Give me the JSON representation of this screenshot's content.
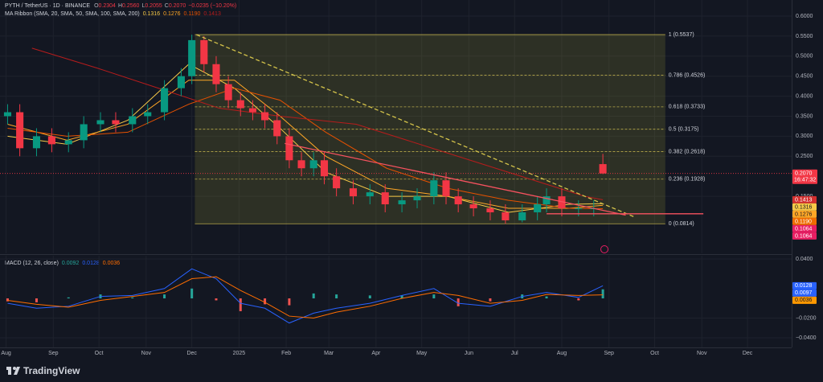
{
  "header": {
    "symbol": "PYTH / TetherUS · 1D · BINANCE",
    "ohlc": [
      {
        "key": "O",
        "value": "0.2304"
      },
      {
        "key": "H",
        "value": "0.2560"
      },
      {
        "key": "L",
        "value": "0.2055"
      },
      {
        "key": "C",
        "value": "0.2070"
      }
    ],
    "change": "−0.0235 (−10.20%)",
    "ma_ribbon": "MA Ribbon (SMA, 20, SMA, 50, SMA, 100, SMA, 200)"
  },
  "chart_data": [
    {
      "type": "candlestick",
      "x": [
        1,
        9,
        20,
        30,
        41,
        51,
        62,
        72,
        83,
        93,
        104,
        115,
        122,
        130,
        138,
        146,
        154,
        162,
        170,
        178,
        186,
        194,
        202,
        209,
        217,
        228,
        239,
        249,
        260,
        270,
        281,
        289,
        297,
        307,
        318,
        328,
        339,
        349,
        355,
        365,
        376,
        386,
        392
      ],
      "open": [
        0.35,
        0.36,
        0.27,
        0.3,
        0.28,
        0.29,
        0.33,
        0.34,
        0.33,
        0.35,
        0.36,
        0.42,
        0.45,
        0.54,
        0.48,
        0.43,
        0.39,
        0.37,
        0.36,
        0.34,
        0.3,
        0.24,
        0.22,
        0.24,
        0.2,
        0.17,
        0.15,
        0.16,
        0.13,
        0.14,
        0.15,
        0.19,
        0.15,
        0.13,
        0.12,
        0.11,
        0.09,
        0.11,
        0.13,
        0.15,
        0.12,
        0.12,
        0.2304
      ],
      "high": [
        0.38,
        0.38,
        0.32,
        0.32,
        0.31,
        0.35,
        0.36,
        0.36,
        0.37,
        0.38,
        0.44,
        0.47,
        0.5537,
        0.55,
        0.5,
        0.45,
        0.41,
        0.39,
        0.38,
        0.36,
        0.32,
        0.26,
        0.26,
        0.26,
        0.22,
        0.19,
        0.18,
        0.18,
        0.16,
        0.17,
        0.21,
        0.21,
        0.17,
        0.15,
        0.14,
        0.13,
        0.13,
        0.15,
        0.17,
        0.17,
        0.14,
        0.14,
        0.256
      ],
      "low": [
        0.33,
        0.25,
        0.25,
        0.26,
        0.26,
        0.27,
        0.31,
        0.31,
        0.31,
        0.33,
        0.34,
        0.4,
        0.43,
        0.46,
        0.41,
        0.37,
        0.35,
        0.34,
        0.32,
        0.28,
        0.22,
        0.2,
        0.2,
        0.18,
        0.15,
        0.13,
        0.13,
        0.11,
        0.11,
        0.12,
        0.13,
        0.13,
        0.11,
        0.1,
        0.09,
        0.0814,
        0.085,
        0.09,
        0.11,
        0.1,
        0.1,
        0.1,
        0.2055
      ],
      "close": [
        0.36,
        0.27,
        0.3,
        0.28,
        0.29,
        0.33,
        0.34,
        0.33,
        0.35,
        0.36,
        0.42,
        0.45,
        0.54,
        0.48,
        0.43,
        0.39,
        0.37,
        0.36,
        0.34,
        0.3,
        0.24,
        0.22,
        0.24,
        0.2,
        0.17,
        0.15,
        0.16,
        0.13,
        0.14,
        0.15,
        0.19,
        0.15,
        0.13,
        0.12,
        0.11,
        0.09,
        0.11,
        0.13,
        0.15,
        0.12,
        0.12,
        0.12,
        0.207
      ],
      "up_color": "#089981",
      "down_color": "#f23645",
      "xlim": [
        -4,
        516
      ],
      "ylim": [
        0.0076,
        0.6402
      ],
      "xticks": [
        {
          "value": 0,
          "label": "Aug"
        },
        {
          "value": 31,
          "label": "Sep"
        },
        {
          "value": 61,
          "label": "Oct"
        },
        {
          "value": 92,
          "label": "Nov"
        },
        {
          "value": 122,
          "label": "Dec"
        },
        {
          "value": 153,
          "label": "2025"
        },
        {
          "value": 184,
          "label": "Feb"
        },
        {
          "value": 212,
          "label": "Mar"
        },
        {
          "value": 243,
          "label": "Apr"
        },
        {
          "value": 273,
          "label": "May"
        },
        {
          "value": 304,
          "label": "Jun"
        },
        {
          "value": 334,
          "label": "Jul"
        },
        {
          "value": 365,
          "label": "Aug"
        },
        {
          "value": 396,
          "label": "Sep"
        },
        {
          "value": 426,
          "label": "Oct"
        },
        {
          "value": 457,
          "label": "Nov"
        },
        {
          "value": 487,
          "label": "Dec"
        }
      ],
      "yticks": [
        {
          "value": 0.6,
          "label": "0.6000"
        },
        {
          "value": 0.55,
          "label": "0.5500"
        },
        {
          "value": 0.5,
          "label": "0.5000"
        },
        {
          "value": 0.45,
          "label": "0.4500"
        },
        {
          "value": 0.4,
          "label": "0.4000"
        },
        {
          "value": 0.35,
          "label": "0.3500"
        },
        {
          "value": 0.3,
          "label": "0.3000"
        },
        {
          "value": 0.25,
          "label": "0.2500"
        },
        {
          "value": 0.15,
          "label": "0.1500"
        }
      ],
      "grid": true,
      "moving_averages": [
        {
          "color": "#f7c948",
          "legend_label": "0.1316",
          "x": [
            1,
            40,
            80,
            120,
            150,
            180,
            210,
            250,
            290,
            330,
            370,
            392
          ],
          "values": [
            0.3,
            0.28,
            0.34,
            0.48,
            0.42,
            0.32,
            0.21,
            0.15,
            0.15,
            0.11,
            0.13,
            0.1316
          ]
        },
        {
          "color": "#ffa726",
          "legend_label": "0.1276",
          "x": [
            1,
            40,
            80,
            120,
            150,
            180,
            210,
            250,
            290,
            330,
            370,
            392
          ],
          "values": [
            0.33,
            0.29,
            0.33,
            0.44,
            0.44,
            0.35,
            0.25,
            0.17,
            0.15,
            0.12,
            0.12,
            0.1276
          ]
        },
        {
          "color": "#e65100",
          "legend_label": "0.1190",
          "x": [
            1,
            40,
            80,
            120,
            150,
            180,
            210,
            250,
            290,
            330,
            370,
            392
          ],
          "values": [
            0.32,
            0.3,
            0.31,
            0.38,
            0.42,
            0.39,
            0.31,
            0.22,
            0.17,
            0.14,
            0.12,
            0.119
          ]
        },
        {
          "color": "#b71c1c",
          "legend_label": "0.1413",
          "x": [
            17,
            60,
            100,
            140,
            180,
            230,
            280,
            330,
            380,
            392
          ],
          "values": [
            0.52,
            0.47,
            0.42,
            0.37,
            0.35,
            0.33,
            0.27,
            0.21,
            0.15,
            0.1413
          ]
        }
      ],
      "fib_range": [
        124,
        433
      ],
      "fib_color": "#b8a94a",
      "fib_levels": [
        {
          "value": 0.5537,
          "label": "1 (0.5537)"
        },
        {
          "value": 0.4526,
          "label": "0.786 (0.4526)"
        },
        {
          "value": 0.3733,
          "label": "0.618 (0.3733)"
        },
        {
          "value": 0.3175,
          "label": "0.5 (0.3175)"
        },
        {
          "value": 0.2618,
          "label": "0.382 (0.2618)"
        },
        {
          "value": 0.1928,
          "label": "0.236 (0.1928)"
        },
        {
          "value": 0.0814,
          "label": "0 (0.0814)"
        }
      ],
      "trendlines": [
        {
          "color": "#d4c34a",
          "dashed": true,
          "x": [
            125,
            413
          ],
          "values": [
            0.5537,
            0.098
          ]
        },
        {
          "color": "#f7525f",
          "dashed": false,
          "x": [
            183,
            407
          ],
          "values": [
            0.282,
            0.103
          ]
        },
        {
          "color": "#f7525f",
          "dashed": false,
          "x": [
            355,
            458
          ],
          "values": [
            0.1064,
            0.1064
          ]
        }
      ],
      "last_price": {
        "value": 0.207,
        "label": "0.2070",
        "countdown": "16:47:32",
        "color": "#f23645"
      },
      "scale_labels": [
        {
          "value": 0.1413,
          "label": "0.1413",
          "color": "#d32f2f"
        },
        {
          "value": 0.1316,
          "label": "0.1316",
          "color": "#f7c948"
        },
        {
          "value": 0.1276,
          "label": "0.1276",
          "color": "#ffa726"
        },
        {
          "value": 0.119,
          "label": "0.1190",
          "color": "#ef6c00"
        },
        {
          "value": 0.1064,
          "label": "0.1064",
          "color": "#e91e63"
        },
        {
          "value": 0.1064,
          "label": "0.1064",
          "color": "#e91e63"
        }
      ]
    },
    {
      "type": "macd",
      "title": "MACD (12, 26, close)",
      "x": [
        1,
        20,
        41,
        62,
        83,
        104,
        122,
        138,
        154,
        170,
        186,
        202,
        217,
        239,
        260,
        281,
        297,
        318,
        339,
        355,
        376,
        392
      ],
      "histogram": {
        "legend_label": "0.0092",
        "up_color": "#26a69a",
        "down_color": "#ef5350",
        "values": [
          -0.003,
          -0.004,
          0.001,
          0.004,
          0.001,
          0.004,
          0.01,
          -0.002,
          -0.013,
          -0.006,
          -0.007,
          0.005,
          0.004,
          0.003,
          0.003,
          0.004,
          -0.008,
          -0.003,
          0.004,
          0.002,
          -0.002,
          0.0092
        ]
      },
      "lines": [
        {
          "color": "#2962ff",
          "legend_label": "0.0128",
          "values": [
            -0.005,
            -0.01,
            -0.008,
            0.002,
            0.003,
            0.01,
            0.03,
            0.02,
            -0.005,
            -0.01,
            -0.025,
            -0.015,
            -0.01,
            -0.005,
            0.003,
            0.01,
            -0.005,
            -0.008,
            0.002,
            0.006,
            0.001,
            0.0128
          ]
        },
        {
          "color": "#ff6d00",
          "legend_label": "0.0036",
          "values": [
            -0.002,
            -0.006,
            -0.009,
            -0.002,
            0.002,
            0.006,
            0.02,
            0.022,
            0.008,
            -0.004,
            -0.018,
            -0.02,
            -0.014,
            -0.008,
            0.0,
            0.006,
            0.003,
            -0.005,
            -0.002,
            0.004,
            0.003,
            0.0036
          ]
        }
      ],
      "xlim": [
        -4,
        516
      ],
      "ylim": [
        -0.0498,
        0.0433
      ],
      "yticks": [
        {
          "value": 0.04,
          "label": "0.0400"
        },
        {
          "value": -0.02,
          "label": "−0.0200"
        },
        {
          "value": -0.04,
          "label": "−0.0400"
        }
      ],
      "scale_labels": [
        {
          "value": 0.0128,
          "label": "0.0128",
          "color": "#2962ff"
        },
        {
          "value": 0.0097,
          "label": "0.0097",
          "color": "#2962ff"
        },
        {
          "value": 0.0036,
          "label": "0.0036",
          "color": "#ff9800"
        }
      ]
    }
  ],
  "footer": {
    "brand": "TradingView"
  }
}
